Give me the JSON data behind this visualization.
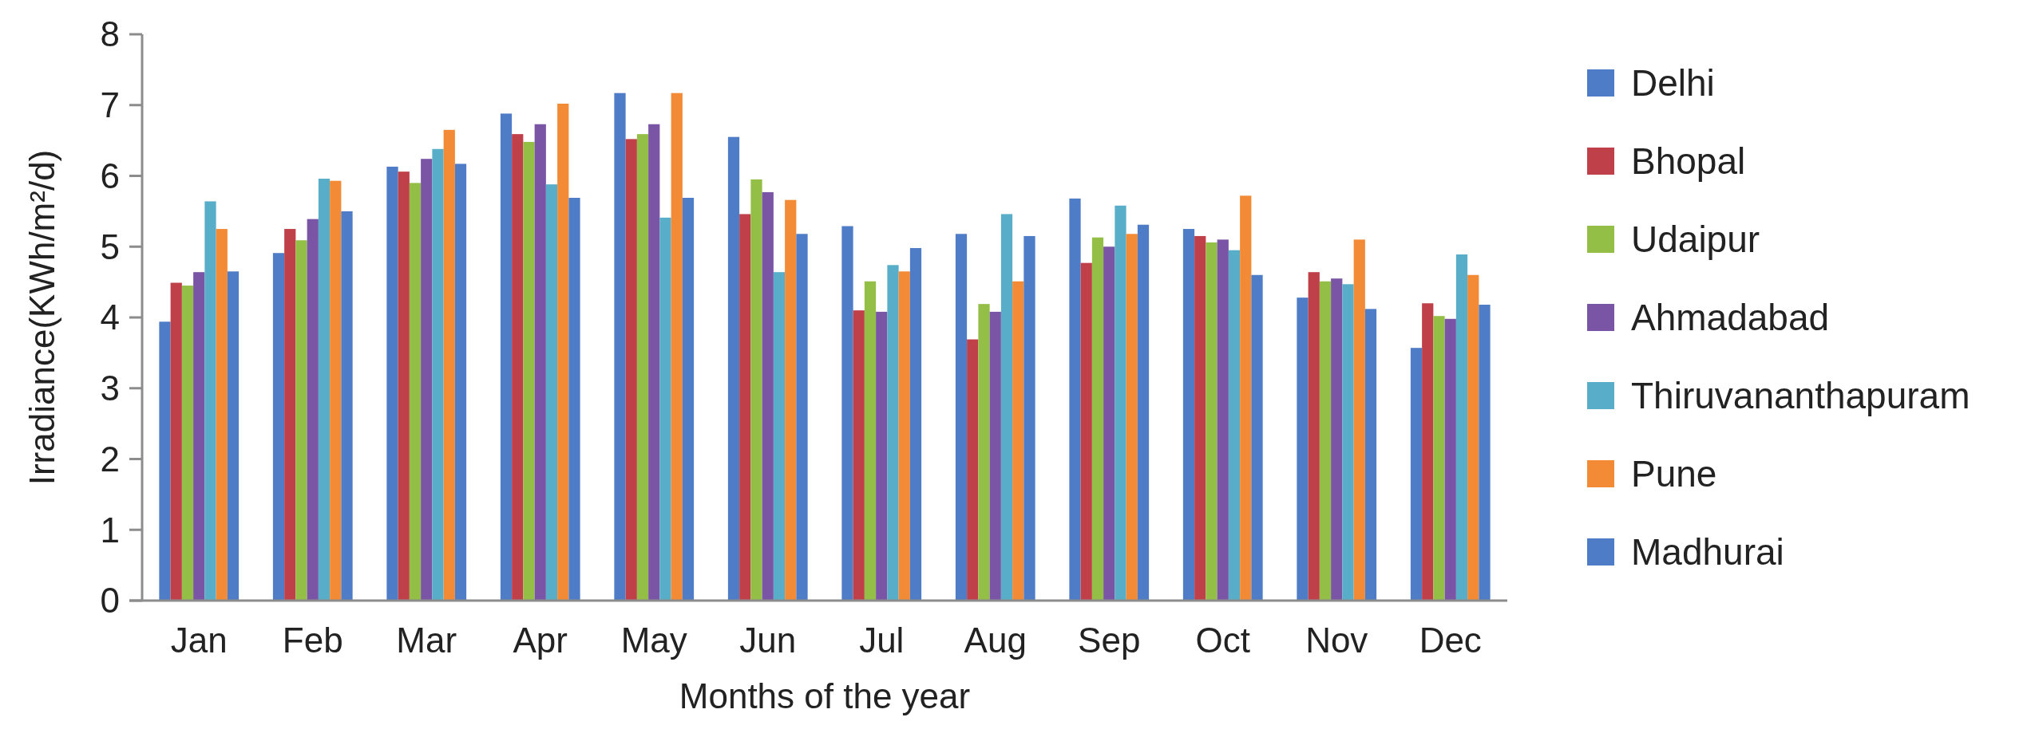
{
  "chart_data": {
    "type": "bar",
    "xlabel": "Months of the year",
    "ylabel": "Irradiance(KWh/m²/d)",
    "categories": [
      "Jan",
      "Feb",
      "Mar",
      "Apr",
      "May",
      "Jun",
      "Jul",
      "Aug",
      "Sep",
      "Oct",
      "Nov",
      "Dec"
    ],
    "series": [
      {
        "name": "Delhi",
        "color": "#4f7cc6",
        "values": [
          3.94,
          4.91,
          6.13,
          6.88,
          7.17,
          6.55,
          5.29,
          5.18,
          5.68,
          5.25,
          4.28,
          3.57
        ]
      },
      {
        "name": "Bhopal",
        "color": "#c0404a",
        "values": [
          4.49,
          5.25,
          6.06,
          6.59,
          6.52,
          5.46,
          4.1,
          3.69,
          4.77,
          5.15,
          4.64,
          4.2
        ]
      },
      {
        "name": "Udaipur",
        "color": "#93bf46",
        "values": [
          4.45,
          5.09,
          5.9,
          6.48,
          6.59,
          5.95,
          4.51,
          4.19,
          5.13,
          5.06,
          4.51,
          4.02
        ]
      },
      {
        "name": "Ahmadabad",
        "color": "#7b55a5",
        "values": [
          4.64,
          5.39,
          6.24,
          6.73,
          6.73,
          5.77,
          4.08,
          4.08,
          5.0,
          5.1,
          4.55,
          3.98
        ]
      },
      {
        "name": "Thiruvananthapuram",
        "color": "#58aec8",
        "values": [
          5.64,
          5.96,
          6.38,
          5.88,
          5.41,
          4.64,
          4.74,
          5.46,
          5.58,
          4.95,
          4.47,
          4.89
        ]
      },
      {
        "name": "Pune",
        "color": "#f38a36",
        "values": [
          5.25,
          5.93,
          6.65,
          7.02,
          7.17,
          5.66,
          4.65,
          4.51,
          5.18,
          5.72,
          5.1,
          4.6
        ]
      },
      {
        "name": "Madhurai",
        "color": "#4f7cc6",
        "values": [
          4.65,
          5.5,
          6.17,
          5.69,
          5.69,
          5.18,
          4.98,
          5.15,
          5.31,
          4.6,
          4.12,
          4.18
        ]
      }
    ],
    "ylim": [
      0,
      8
    ],
    "yticks": [
      0,
      1,
      2,
      3,
      4,
      5,
      6,
      7,
      8
    ],
    "legend": "right"
  }
}
